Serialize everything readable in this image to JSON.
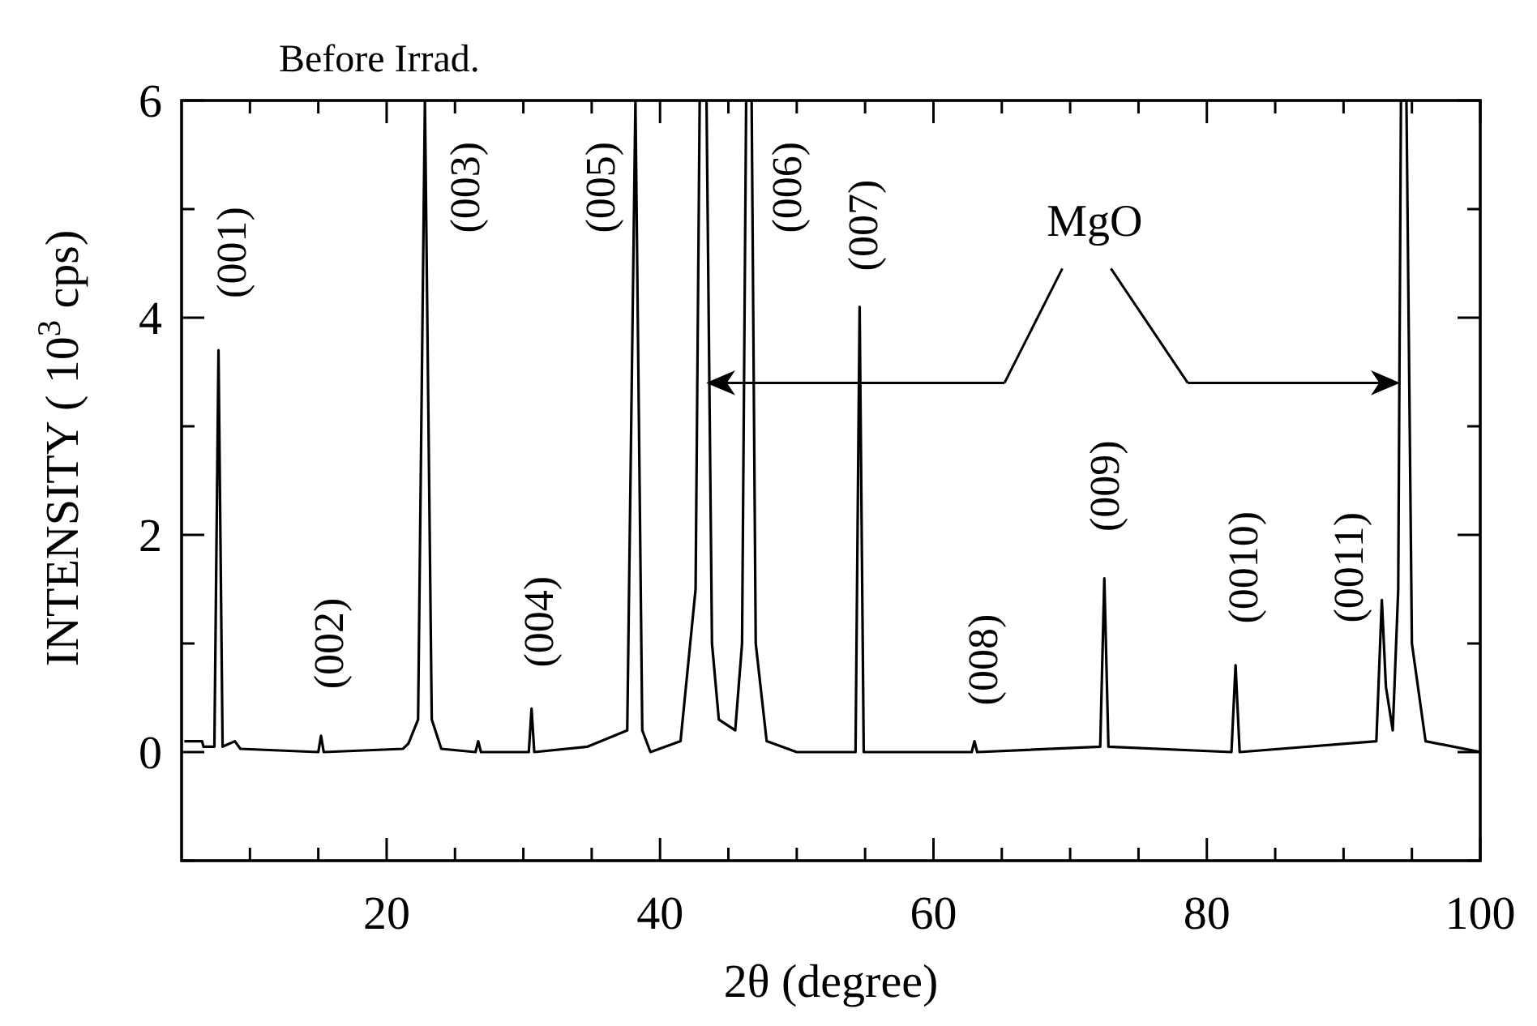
{
  "chart_data": {
    "type": "line",
    "title": "Before Irrad.",
    "xlabel": "2θ (degree)",
    "ylabel": "INTENSITY ( 10$^{3}$ cps)",
    "xlim": [
      5,
      100
    ],
    "xticks": [
      {
        "value": 10,
        "label": null
      },
      {
        "value": 15,
        "label": null
      },
      20,
      {
        "value": 25,
        "label": null
      },
      {
        "value": 30,
        "label": null
      },
      {
        "value": 35,
        "label": null
      },
      40,
      {
        "value": 45,
        "label": null
      },
      {
        "value": 50,
        "label": null
      },
      {
        "value": 55,
        "label": null
      },
      60,
      {
        "value": 65,
        "label": null
      },
      {
        "value": 70,
        "label": null
      },
      {
        "value": 75,
        "label": null
      },
      80,
      {
        "value": 85,
        "label": null
      },
      {
        "value": 90,
        "label": null
      },
      {
        "value": 95,
        "label": null
      },
      100
    ],
    "ylim": [
      -1,
      6
    ],
    "yticks": [
      {
        "value": -1,
        "label": null
      },
      0,
      {
        "value": 1,
        "label": null
      },
      2,
      {
        "value": 3,
        "label": null
      },
      4,
      {
        "value": 5,
        "label": null
      },
      6
    ],
    "grid": false,
    "marker": "none",
    "line_style": "solid",
    "series": [
      {
        "color": "#000000",
        "x": [
          5.2,
          6.5,
          6.6,
          7.4,
          7.7,
          8.0,
          8.9,
          9.3,
          15.0,
          15.2,
          15.4,
          21.2,
          21.6,
          22.3,
          22.8,
          23.3,
          24.0,
          26.5,
          26.7,
          26.9,
          30.4,
          30.6,
          30.8,
          34.7,
          37.6,
          38.2,
          38.7,
          39.3,
          41.5,
          42.6,
          42.9,
          43.4,
          43.8,
          44.3,
          45.5,
          46.0,
          46.3,
          46.7,
          47.0,
          47.8,
          50.0,
          54.3,
          54.6,
          54.9,
          62.8,
          63.0,
          63.2,
          72.2,
          72.5,
          72.8,
          81.8,
          82.1,
          82.4,
          92.4,
          92.8,
          93.1,
          93.6,
          94.0,
          94.2,
          94.6,
          95.0,
          96.0,
          100.0
        ],
        "values": [
          0.1,
          0.1,
          0.05,
          0.05,
          3.7,
          0.05,
          0.1,
          0.03,
          0.0,
          0.15,
          0.0,
          0.03,
          0.08,
          0.3,
          6,
          0.3,
          0.03,
          0.0,
          0.1,
          0.0,
          0.0,
          0.4,
          0.0,
          0.05,
          0.2,
          6,
          0.2,
          0.0,
          0.1,
          1.5,
          6,
          6,
          1.0,
          0.3,
          0.2,
          1.0,
          6,
          6,
          1.0,
          0.1,
          0.0,
          0.0,
          4.1,
          0.0,
          0.0,
          0.1,
          0.0,
          0.05,
          1.6,
          0.05,
          0.0,
          0.8,
          0.0,
          0.1,
          1.4,
          0.6,
          0.2,
          1.5,
          6,
          6,
          1.0,
          0.1,
          0.0
        ]
      }
    ],
    "annotations": [
      "(001)",
      "(002)",
      "(003)",
      "(004)",
      "(005)",
      "(006)",
      "(007)",
      "(008)",
      "(009)",
      "(0010)",
      "(0011)",
      "MgO"
    ]
  }
}
